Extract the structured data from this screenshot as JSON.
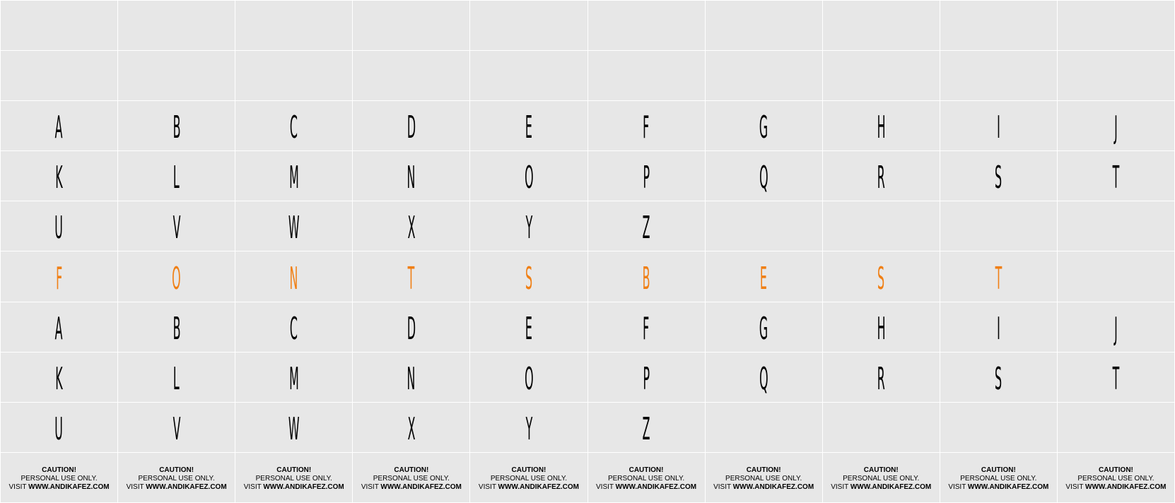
{
  "colors": {
    "cell_background": "#e7e7e7",
    "grid_line": "#ffffff",
    "glyph_default": "#000000",
    "glyph_highlight": "#f07f14"
  },
  "rows": [
    {
      "kind": "blank",
      "cells": [
        "",
        "",
        "",
        "",
        "",
        "",
        "",
        "",
        "",
        ""
      ]
    },
    {
      "kind": "blank",
      "cells": [
        "",
        "",
        "",
        "",
        "",
        "",
        "",
        "",
        "",
        ""
      ]
    },
    {
      "kind": "glyphs",
      "color": "#000000",
      "cells": [
        "A",
        "B",
        "C",
        "D",
        "E",
        "F",
        "G",
        "H",
        "I",
        "J"
      ]
    },
    {
      "kind": "glyphs",
      "color": "#000000",
      "cells": [
        "K",
        "L",
        "M",
        "N",
        "O",
        "P",
        "Q",
        "R",
        "S",
        "T"
      ]
    },
    {
      "kind": "glyphs",
      "color": "#000000",
      "cells": [
        "U",
        "V",
        "W",
        "X",
        "Y",
        "Z",
        "",
        "",
        "",
        ""
      ]
    },
    {
      "kind": "glyphs",
      "color": "#f07f14",
      "cells": [
        "F",
        "O",
        "N",
        "T",
        "S",
        "B",
        "E",
        "S",
        "T",
        ""
      ]
    },
    {
      "kind": "glyphs",
      "color": "#000000",
      "cells": [
        "A",
        "B",
        "C",
        "D",
        "E",
        "F",
        "G",
        "H",
        "I",
        "J"
      ]
    },
    {
      "kind": "glyphs",
      "color": "#000000",
      "cells": [
        "K",
        "L",
        "M",
        "N",
        "O",
        "P",
        "Q",
        "R",
        "S",
        "T"
      ]
    },
    {
      "kind": "glyphs",
      "color": "#000000",
      "cells": [
        "U",
        "V",
        "W",
        "X",
        "Y",
        "Z",
        "",
        "",
        "",
        ""
      ]
    },
    {
      "kind": "caution",
      "cells": [
        "c",
        "c",
        "c",
        "c",
        "c",
        "c",
        "c",
        "c",
        "c",
        "c"
      ]
    }
  ],
  "caution": {
    "title": "CAUTION!",
    "line2": "PERSONAL USE ONLY.",
    "visit": "VISIT ",
    "site": "WWW.ANDIKAFEZ.COM"
  }
}
